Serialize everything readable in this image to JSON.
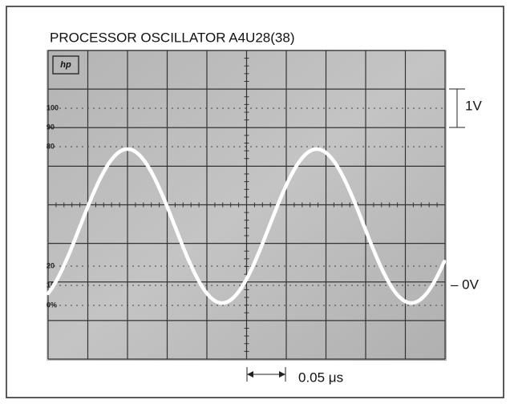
{
  "header": {
    "title": "PROCESSOR OSCILLATOR A4U28(38)"
  },
  "screen": {
    "logo": "hp",
    "graticule_labels": [
      "100",
      "90",
      "80",
      "20",
      "10",
      "0%"
    ]
  },
  "annotations": {
    "volts_per_division": "1V",
    "zero_level": "– 0V",
    "time_per_division": "0.05 μs"
  }
}
